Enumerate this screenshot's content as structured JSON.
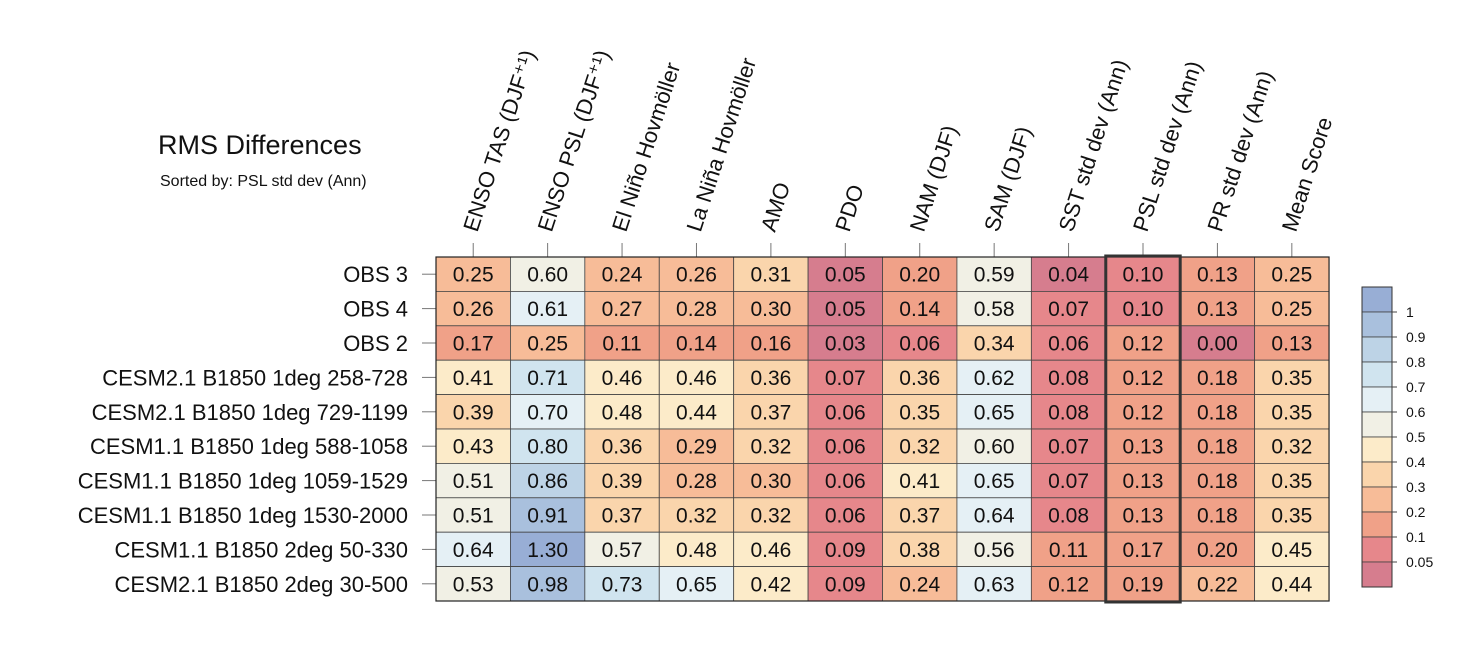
{
  "chart_data": {
    "type": "heatmap",
    "title": "RMS Differences",
    "subtitle": "Sorted by: PSL std dev (Ann)",
    "columns": [
      "ENSO TAS (DJF⁺¹)",
      "ENSO PSL (DJF⁺¹)",
      "El Niño Hovmöller",
      "La Niña Hovmöller",
      "AMO",
      "PDO",
      "NAM (DJF)",
      "SAM (DJF)",
      "SST std dev (Ann)",
      "PSL std dev (Ann)",
      "PR std dev (Ann)",
      "Mean Score"
    ],
    "rows": [
      "OBS 3",
      "OBS 4",
      "OBS 2",
      "CESM2.1 B1850 1deg 258-728",
      "CESM2.1 B1850 1deg 729-1199",
      "CESM1.1 B1850 1deg 588-1058",
      "CESM1.1 B1850 1deg 1059-1529",
      "CESM1.1 B1850 1deg 1530-2000",
      "CESM1.1 B1850 2deg 50-330",
      "CESM2.1 B1850 2deg 30-500"
    ],
    "values": [
      [
        "0.25",
        "0.60",
        "0.24",
        "0.26",
        "0.31",
        "0.05",
        "0.20",
        "0.59",
        "0.04",
        "0.10",
        "0.13",
        "0.25"
      ],
      [
        "0.26",
        "0.61",
        "0.27",
        "0.28",
        "0.30",
        "0.05",
        "0.14",
        "0.58",
        "0.07",
        "0.10",
        "0.13",
        "0.25"
      ],
      [
        "0.17",
        "0.25",
        "0.11",
        "0.14",
        "0.16",
        "0.03",
        "0.06",
        "0.34",
        "0.06",
        "0.12",
        "0.00",
        "0.13"
      ],
      [
        "0.41",
        "0.71",
        "0.46",
        "0.46",
        "0.36",
        "0.07",
        "0.36",
        "0.62",
        "0.08",
        "0.12",
        "0.18",
        "0.35"
      ],
      [
        "0.39",
        "0.70",
        "0.48",
        "0.44",
        "0.37",
        "0.06",
        "0.35",
        "0.65",
        "0.08",
        "0.12",
        "0.18",
        "0.35"
      ],
      [
        "0.43",
        "0.80",
        "0.36",
        "0.29",
        "0.32",
        "0.06",
        "0.32",
        "0.60",
        "0.07",
        "0.13",
        "0.18",
        "0.32"
      ],
      [
        "0.51",
        "0.86",
        "0.39",
        "0.28",
        "0.30",
        "0.06",
        "0.41",
        "0.65",
        "0.07",
        "0.13",
        "0.18",
        "0.35"
      ],
      [
        "0.51",
        "0.91",
        "0.37",
        "0.32",
        "0.32",
        "0.06",
        "0.37",
        "0.64",
        "0.08",
        "0.13",
        "0.18",
        "0.35"
      ],
      [
        "0.64",
        "1.30",
        "0.57",
        "0.48",
        "0.46",
        "0.09",
        "0.38",
        "0.56",
        "0.11",
        "0.17",
        "0.20",
        "0.45"
      ],
      [
        "0.53",
        "0.98",
        "0.73",
        "0.65",
        "0.42",
        "0.09",
        "0.24",
        "0.63",
        "0.12",
        "0.19",
        "0.22",
        "0.44"
      ]
    ],
    "highlighted_column": "PSL std dev (Ann)",
    "colorbar": {
      "levels": [
        "1",
        "0.9",
        "0.8",
        "0.7",
        "0.6",
        "0.5",
        "0.4",
        "0.3",
        "0.2",
        "0.1",
        "0.05"
      ],
      "colors": [
        "#98aed5",
        "#a9c0dd",
        "#bdd3e6",
        "#d0e4ef",
        "#e5f0f5",
        "#f1f0e5",
        "#fcebc9",
        "#fad5ac",
        "#f7bc98",
        "#f0a188",
        "#e6878b",
        "#d67d8e"
      ]
    },
    "colormap": [
      {
        "max": 0.05,
        "color": "#d67d8e"
      },
      {
        "max": 0.1,
        "color": "#e6878b"
      },
      {
        "max": 0.2,
        "color": "#f0a188"
      },
      {
        "max": 0.3,
        "color": "#f7bc98"
      },
      {
        "max": 0.4,
        "color": "#fad5ac"
      },
      {
        "max": 0.5,
        "color": "#fcebc9"
      },
      {
        "max": 0.6,
        "color": "#f1f0e5"
      },
      {
        "max": 0.7,
        "color": "#e5f0f5"
      },
      {
        "max": 0.8,
        "color": "#d0e4ef"
      },
      {
        "max": 0.9,
        "color": "#bdd3e6"
      },
      {
        "max": 1.0,
        "color": "#a9c0dd"
      },
      {
        "max": 99,
        "color": "#98aed5"
      }
    ]
  }
}
